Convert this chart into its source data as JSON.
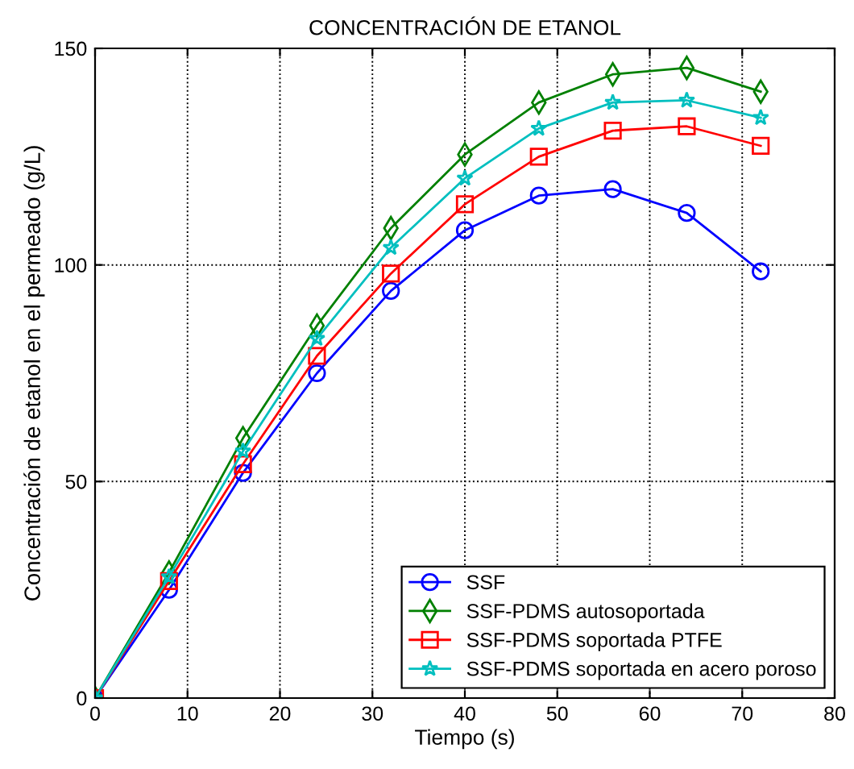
{
  "chart_data": {
    "type": "line",
    "title": "CONCENTRACIÓN DE ETANOL",
    "xlabel": "Tiempo (s)",
    "ylabel": "Concentración de etanol en el permeado (g/L)",
    "x": [
      0,
      8,
      16,
      24,
      32,
      40,
      48,
      56,
      64,
      72
    ],
    "series": [
      {
        "name": "SSF",
        "color": "#0000ff",
        "marker": "circle",
        "values": [
          0,
          25,
          52,
          75,
          94,
          108,
          116,
          117.5,
          112,
          98.5
        ]
      },
      {
        "name": "SSF-PDMS autosoportada",
        "color": "#008000",
        "marker": "diamond",
        "values": [
          0,
          29,
          60,
          86,
          108.5,
          125.5,
          137.5,
          144,
          145.5,
          140
        ]
      },
      {
        "name": "SSF-PDMS soportada PTFE",
        "color": "#ff0000",
        "marker": "square",
        "values": [
          0,
          27,
          54,
          79,
          98,
          114,
          125,
          131,
          132,
          127.5
        ]
      },
      {
        "name": "SSF-PDMS soportada en acero poroso",
        "color": "#00bfbf",
        "marker": "star",
        "values": [
          0,
          28,
          57,
          83,
          104,
          120,
          131.5,
          137.5,
          138,
          134
        ]
      }
    ],
    "xlim": [
      0,
      80
    ],
    "xticks": [
      0,
      10,
      20,
      30,
      40,
      50,
      60,
      70,
      80
    ],
    "ylim": [
      0,
      150
    ],
    "yticks": [
      0,
      50,
      100,
      150
    ],
    "grid": true,
    "legend": "bottom right",
    "line_style": "solid"
  }
}
